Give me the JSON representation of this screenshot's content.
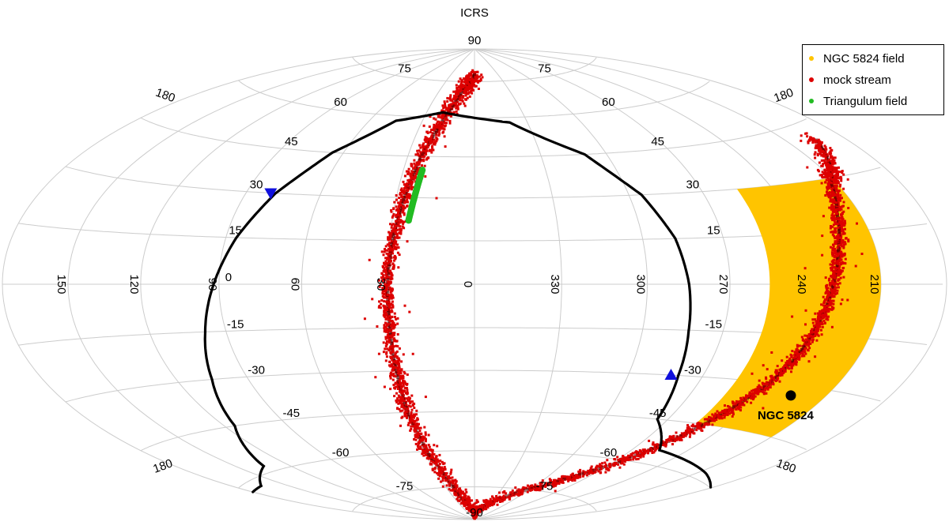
{
  "chart_data": {
    "type": "scatter",
    "projection": "hammer-aitoff",
    "title": "ICRS",
    "grid": true,
    "legend_placement": "top-right",
    "legend": [
      {
        "name": "NGC 5824 field",
        "color": "#FFC400"
      },
      {
        "name": "mock stream",
        "color": "#DD0000"
      },
      {
        "name": "Triangulum field",
        "color": "#22BB22"
      }
    ],
    "lon_ticks": [
      "0",
      "30",
      "60",
      "90",
      "120",
      "150",
      "180",
      "210",
      "240",
      "270",
      "300",
      "330"
    ],
    "lat_ticks": [
      "90",
      "75",
      "60",
      "45",
      "30",
      "15",
      "0",
      "-15",
      "-30",
      "-45",
      "-60",
      "-75",
      "-90"
    ],
    "lon_labels": [
      {
        "text": "210",
        "lon": 210,
        "lat": 0
      },
      {
        "text": "240",
        "lon": 240,
        "lat": 0
      },
      {
        "text": "270",
        "lon": 270,
        "lat": 0
      },
      {
        "text": "300",
        "lon": 300,
        "lat": 0
      },
      {
        "text": "330",
        "lon": 330,
        "lat": 0
      },
      {
        "text": "0",
        "lon": 0,
        "lat": 0
      },
      {
        "text": "30",
        "lon": 30,
        "lat": 0
      },
      {
        "text": "60",
        "lon": 60,
        "lat": 0
      },
      {
        "text": "90",
        "lon": 90,
        "lat": 0
      },
      {
        "text": "120",
        "lon": 120,
        "lat": 0
      },
      {
        "text": "150",
        "lon": 150,
        "lat": 0
      },
      {
        "text": "180",
        "lon": 180,
        "lat": 52,
        "side": "left"
      },
      {
        "text": "180",
        "lon": 180,
        "lat": 52,
        "side": "right"
      },
      {
        "text": "180",
        "lon": 180,
        "lat": -52,
        "side": "left"
      },
      {
        "text": "180",
        "lon": 180,
        "lat": -52,
        "side": "right"
      }
    ],
    "lat_labels": [
      {
        "text": "90",
        "lat": 90,
        "lon": 0
      },
      {
        "text": "75",
        "lat": 75,
        "lon": 90
      },
      {
        "text": "75",
        "lat": 75,
        "lon": 270
      },
      {
        "text": "60",
        "lat": 60,
        "lon": 90
      },
      {
        "text": "60",
        "lat": 60,
        "lon": 270
      },
      {
        "text": "45",
        "lat": 45,
        "lon": 90
      },
      {
        "text": "45",
        "lat": 45,
        "lon": 270
      },
      {
        "text": "30",
        "lat": 30,
        "lon": 90
      },
      {
        "text": "30",
        "lat": 30,
        "lon": 270
      },
      {
        "text": "15",
        "lat": 15,
        "lon": 90
      },
      {
        "text": "15",
        "lat": 15,
        "lon": 270
      },
      {
        "text": "0",
        "lat": 0,
        "lon": 90
      },
      {
        "text": "-15",
        "lat": -15,
        "lon": 90
      },
      {
        "text": "-15",
        "lat": -15,
        "lon": 270
      },
      {
        "text": "-30",
        "lat": -30,
        "lon": 90
      },
      {
        "text": "-30",
        "lat": -30,
        "lon": 270
      },
      {
        "text": "-45",
        "lat": -45,
        "lon": 90
      },
      {
        "text": "-45",
        "lat": -45,
        "lon": 270
      },
      {
        "text": "-60",
        "lat": -60,
        "lon": 90
      },
      {
        "text": "-60",
        "lat": -60,
        "lon": 270
      },
      {
        "text": "-75",
        "lat": -75,
        "lon": 90
      },
      {
        "text": "-75",
        "lat": -75,
        "lon": 270
      },
      {
        "text": "-90",
        "lat": -90,
        "lon": 0
      }
    ],
    "ngc5824_field": {
      "ra_range": [
        210,
        255
      ],
      "dec_range": [
        -45,
        30
      ],
      "color": "#FFC400"
    },
    "triangulum_field": {
      "ra_start": 22,
      "dec_start": 40,
      "ra_end": 24,
      "dec_end": 22,
      "color": "#22BB22"
    },
    "mock_stream": {
      "color": "#DD0000",
      "dense_color": "#4A0000",
      "track": [
        [
          195,
          40
        ],
        [
          205,
          33
        ],
        [
          213,
          28
        ],
        [
          220,
          20
        ],
        [
          226,
          10
        ],
        [
          230,
          0
        ],
        [
          233,
          -10
        ],
        [
          236,
          -20
        ],
        [
          240,
          -30
        ],
        [
          247,
          -40
        ],
        [
          255,
          -50
        ],
        [
          268,
          -62
        ],
        [
          290,
          -72
        ],
        [
          330,
          -82
        ],
        [
          0,
          -88
        ],
        [
          20,
          -80
        ],
        [
          28,
          -62
        ],
        [
          30,
          -45
        ],
        [
          30,
          -30
        ],
        [
          30,
          -15
        ],
        [
          30,
          0
        ],
        [
          29,
          15
        ],
        [
          27,
          30
        ],
        [
          24,
          45
        ],
        [
          18,
          60
        ],
        [
          10,
          72
        ],
        [
          0,
          78
        ]
      ]
    },
    "orbit_curve": {
      "color": "#000000",
      "track": [
        [
          180,
          -60
        ],
        [
          205,
          -58
        ],
        [
          255,
          -55
        ],
        [
          275,
          -45
        ],
        [
          280,
          -30
        ],
        [
          283,
          -15
        ],
        [
          285,
          0
        ],
        [
          288,
          15
        ],
        [
          295,
          30
        ],
        [
          310,
          45
        ],
        [
          340,
          58
        ],
        [
          20,
          62
        ],
        [
          45,
          58
        ],
        [
          65,
          45
        ],
        [
          78,
          30
        ],
        [
          86,
          15
        ],
        [
          92,
          0
        ],
        [
          98,
          -15
        ],
        [
          105,
          -30
        ],
        [
          115,
          -45
        ],
        [
          135,
          -58
        ],
        [
          165,
          -62
        ],
        [
          180,
          -62
        ]
      ]
    },
    "markers": [
      {
        "label": "",
        "ra": 283,
        "dec": -30,
        "symbol": "triangle-up",
        "color": "#1010DD"
      },
      {
        "label": "",
        "ra": 80,
        "dec": 30,
        "symbol": "triangle-down",
        "color": "#1010DD"
      },
      {
        "label": "NGC 5824",
        "ra": 226,
        "dec": -33,
        "symbol": "circle",
        "color": "#000000"
      }
    ]
  }
}
